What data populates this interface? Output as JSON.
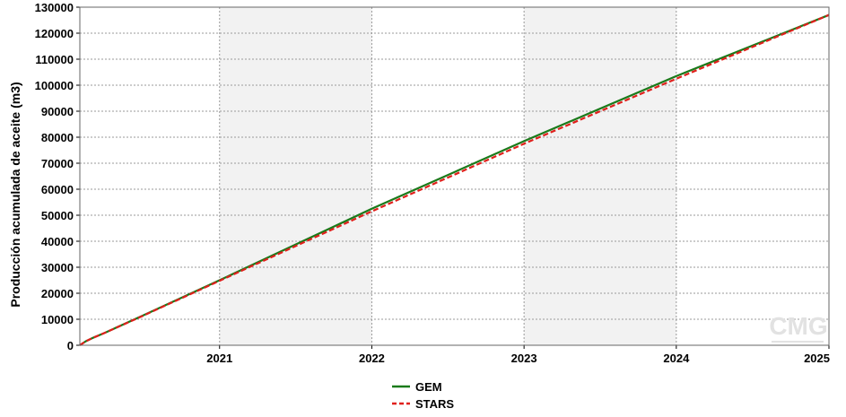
{
  "chart_data": {
    "type": "line",
    "title": "",
    "xlabel": "",
    "ylabel": "Producción acumulada de aceite (m3)",
    "x_ticks": [
      "2021",
      "2022",
      "2023",
      "2024",
      "2025"
    ],
    "y_ticks": [
      "0",
      "10000",
      "20000",
      "30000",
      "40000",
      "50000",
      "60000",
      "70000",
      "80000",
      "90000",
      "100000",
      "110000",
      "120000",
      "130000"
    ],
    "xlim": [
      "2020-02-01",
      "2025-01-01"
    ],
    "ylim": [
      0,
      130000
    ],
    "grid": true,
    "shaded_bands": [
      [
        "2021-01-01",
        "2022-01-01"
      ],
      [
        "2023-01-01",
        "2024-01-01"
      ]
    ],
    "legend_position": "bottom-center",
    "series": [
      {
        "name": "GEM",
        "color": "#1a7a1a",
        "dash": "solid",
        "points": [
          [
            "2020-02-01",
            0
          ],
          [
            "2020-02-15",
            1500
          ],
          [
            "2020-03-01",
            2700
          ],
          [
            "2020-04-01",
            4800
          ],
          [
            "2020-07-01",
            11400
          ],
          [
            "2021-01-01",
            25000
          ],
          [
            "2022-01-01",
            52500
          ],
          [
            "2023-01-01",
            78500
          ],
          [
            "2024-01-01",
            103500
          ],
          [
            "2025-01-01",
            127000
          ]
        ]
      },
      {
        "name": "STARS",
        "color": "#e0201c",
        "dash": "dashed",
        "points": [
          [
            "2020-02-01",
            0
          ],
          [
            "2020-02-15",
            1500
          ],
          [
            "2020-03-01",
            2700
          ],
          [
            "2020-04-01",
            4800
          ],
          [
            "2020-07-01",
            11300
          ],
          [
            "2021-01-01",
            24800
          ],
          [
            "2022-01-01",
            51500
          ],
          [
            "2023-01-01",
            77500
          ],
          [
            "2024-01-01",
            102500
          ],
          [
            "2025-01-01",
            127000
          ]
        ]
      }
    ],
    "watermark": "CMG"
  }
}
